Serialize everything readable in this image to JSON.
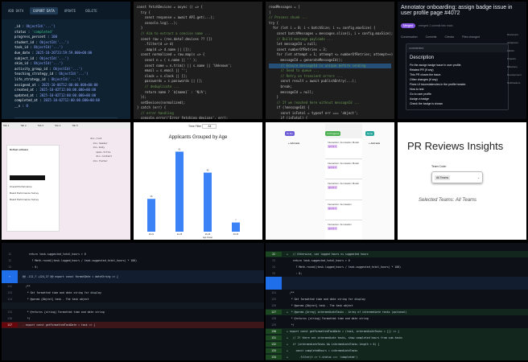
{
  "tile1": {
    "toolbar": [
      "ADD DATA",
      "EXPORT DATA",
      "UPDATE",
      "DELETE"
    ],
    "doc1": [
      [
        "_id",
        "ObjectId('...')"
      ],
      [
        "status",
        "'completed'"
      ],
      [
        "progress_percent",
        "100"
      ],
      [
        "student_id",
        "ObjectId('...')"
      ],
      [
        "task_id",
        "ObjectId('...')"
      ],
      [
        "due_date",
        "2025-10-26T23:59:59.000+00:00"
      ],
      [
        "subject_id",
        "ObjectId('...')"
      ],
      [
        "skim_id",
        "ObjectId('...')"
      ],
      [
        "activity_group_id",
        "ObjectId('...')"
      ],
      [
        "teaching_strategy_id",
        "ObjectId('...')"
      ],
      [
        "life_strategy_id",
        "ObjectId('...')"
      ],
      [
        "assigned_at",
        "2025-10-06T12:00:00.000+00:00"
      ],
      [
        "created_at",
        "2025-10-02T12:00:00.000+00:00"
      ],
      [
        "updated_at",
        "2025-10-02T12:00:00.000+00:00"
      ],
      [
        "completed_at",
        "2025-10-02T12:00:00.000+00:00"
      ],
      [
        "__v",
        "0"
      ]
    ],
    "doc2": [
      [
        "_id",
        "ObjectId('...')"
      ],
      [
        "status",
        "'not_started'"
      ],
      [
        "progress_percent",
        "0"
      ]
    ]
  },
  "tile2": {
    "lines": [
      "const fetchDevices = async () => {",
      "  try {",
      "    const response = await API.get(...);",
      "    console.log(...);",
      "  }",
      "",
      "  // Aim to extract a concise name ...",
      "  const raw = (res.data?.devices ?? [])",
      "    .filter(d => d)",
      "    .map(d => d.name || []);",
      "",
      "  const normalized = raw.map(s => {",
      "    const n = ( s.name || '' );",
      "    const name = n.trim() || s.name || 'Unknown';",
      "    email = s.email || '';",
      "    slack = s.slack || [];",
      "    passwords = s.passwords || [];",
      "    // deduplicate ...",
      "    return name ? `${name}` : 'N/A';",
      "  });",
      "",
      "  setDevices(normalized);",
      "} catch (err) {",
      "  // error handling",
      "  console.error('Error fetching devices', err);",
      "  setDevices([]);",
      "}"
    ]
  },
  "tile3": {
    "lines": [
      "readMessages = [",
      "]",
      "// Process chunk ...",
      "try {",
      "  for (let i = 0; i < batchSize; i += config.maxSize) {",
      "    const batchMessages = messages.slice(i, i + config.maxSize);",
      "",
      "    // Build message payloads ...",
      "    let messageId = null;",
      "    const numberOfRetries = 3;",
      "    for (let attempt = 1; attempt <= numberOfRetries; attempt++) {",
      "      messageId = generateMessageId();",
      "      // Ensure messageId is unique before sending",
      "      // Send to queue ...",
      "      // Retry on transient errors ...",
      "      const result = await publishEntry(...);",
      "      break;",
      "      messageId = null;",
      "    }",
      "",
      "    // If we reached here without messageId ...",
      "    if (!messageId) {",
      "      const isFatal = typeof err === 'object';",
      "      if (isFatal) {",
      "        throw new Error(...);",
      "      messageId = `${failedId}`;",
      "    }"
    ],
    "highlight_line": 12
  },
  "tile4": {
    "title": "Annotator onboarding: assign badge issue in user profile page #4072",
    "badge": "Merged",
    "meta": "merged 1 commit into main",
    "tabs": [
      "Conversation",
      "Commits",
      "Checks",
      "Files changed"
    ],
    "comment_header": "commented",
    "description_heading": "Description",
    "paragraphs": [
      "Fix the assign badge issue in user profile.",
      "Related PR (if any)",
      "This PR closes the issue.",
      "Other changes (if any)",
      "Fixes UI inconsistencies in the profile header.",
      "How to test",
      "Go to user profile",
      "Assign a badge",
      "Check the badge is shown"
    ],
    "sidebar": [
      "Reviewers",
      "Assignees",
      "Labels",
      "Projects",
      "Milestone",
      "Development",
      "Notifications"
    ]
  },
  "tile5": {
    "tabs": [
      "Tab 1",
      "Tab 2",
      "Tab 3",
      "Tab 4",
      "Tab 5"
    ],
    "panel_title": "Refinal software",
    "panel_items": [
      "Overall Performance",
      "Board Performance Survey",
      "Board Performance Survey"
    ],
    "code": [
      "div.root",
      "  div.header",
      "  div.body",
      "    span.title",
      "    div.content",
      "  div.footer"
    ]
  },
  "tile6": {
    "filter_label": "Time Filter",
    "filter_value": "All",
    "chart_data": {
      "type": "bar",
      "title": "Applicants Grouped by Age",
      "xlabel": "Age Group",
      "categories": [
        "18-21",
        "22-25",
        "26-29",
        "30-33"
      ],
      "values": [
        25,
        61,
        45,
        7
      ],
      "ylim": [
        0,
        65
      ],
      "color": "#3b82f6"
    }
  },
  "tile7": {
    "columns": [
      {
        "header": "To Do",
        "color": "#6b5bd6",
        "cards": [
          "+ Add task"
        ]
      },
      {
        "header": "In Progress",
        "color": "#4caf50",
        "cards": [
          "Interaction: Annotation Model",
          "Interaction: Annotation Model",
          "Interaction: Annotation Model",
          "Interaction: Annotation",
          "Interaction: Annotation"
        ]
      },
      {
        "header": "Done",
        "color": "#26a69a",
        "cards": [
          "+ Add task"
        ]
      }
    ],
    "tag": "sprint 1"
  },
  "tile8": {
    "title": "PR Reviews Insights",
    "label": "Team Code:",
    "chip": "All Teams",
    "selected": "Selected Teams: All Teams"
  },
  "tile9": {
    "lines": [
      [
        "12",
        "",
        "    return task.suggested_total_hours > 0"
      ],
      [
        "12",
        "",
        "      ? Math.round((task.logged_hours / task.suggested_total_hours) * 100)"
      ],
      [
        "13",
        "",
        "      : 0;"
      ],
      [
        "⋯",
        "hunk",
        "@@ -112,7 +124,27 @@ export const formatDate = dateString => {"
      ],
      [
        "112",
        "",
        "  /**"
      ],
      [
        "113",
        "",
        "   * Get formatted time and date string for display"
      ],
      [
        "114",
        "",
        "   * @param {Object} task - The task object"
      ],
      [
        "",
        "gap",
        ""
      ],
      [
        "115",
        "",
        "   * @returns {string} Formatted time and date string"
      ],
      [
        "116",
        "",
        "   */"
      ],
      [
        "117",
        "del",
        "- export const getFormattedTaskDate = task => {"
      ]
    ]
  },
  "tile10": {
    "lines": [
      [
        "22",
        "add",
        "+   // Otherwise, use logged hours vs suggested hours"
      ],
      [
        "23",
        "",
        "    return task.suggested_total_hours > 0"
      ],
      [
        "24",
        "",
        "      ? Math.round((task.logged_hours / task.suggested_total_hours) * 100)"
      ],
      [
        "25",
        "",
        "      : 0;"
      ],
      [
        "",
        "hunk",
        ""
      ],
      [
        "124",
        "",
        "  /**"
      ],
      [
        "125",
        "",
        "   * Get formatted time and date string for display"
      ],
      [
        "126",
        "",
        "   * @param {Object} task - The task object"
      ],
      [
        "127",
        "add",
        "+  * @param {Array} intermediateTasks - Array of intermediate tasks (optional)"
      ],
      [
        "128",
        "",
        "   * @returns {string} Formatted time and date string"
      ],
      [
        "129",
        "",
        "   */"
      ],
      [
        "130",
        "add",
        "+ export const getFormattedTaskDate = (task, intermediateTasks = []) => {"
      ],
      [
        "131",
        "add",
        "+   // If there are intermediate tasks, show completed hours from sub-tasks"
      ],
      [
        "132",
        "add",
        "+   if (intermediateTasks && intermediateTasks.length > 0) {"
      ],
      [
        "133",
        "add",
        "+     const completedHours = intermediateTasks"
      ],
      [
        "134",
        "add",
        "+       .filter(t => t.status === 'completed')"
      ],
      [
        "135",
        "add",
        "+       .reduce((sum, t) => sum + (t.completed_hours || 0), 0);"
      ]
    ]
  }
}
